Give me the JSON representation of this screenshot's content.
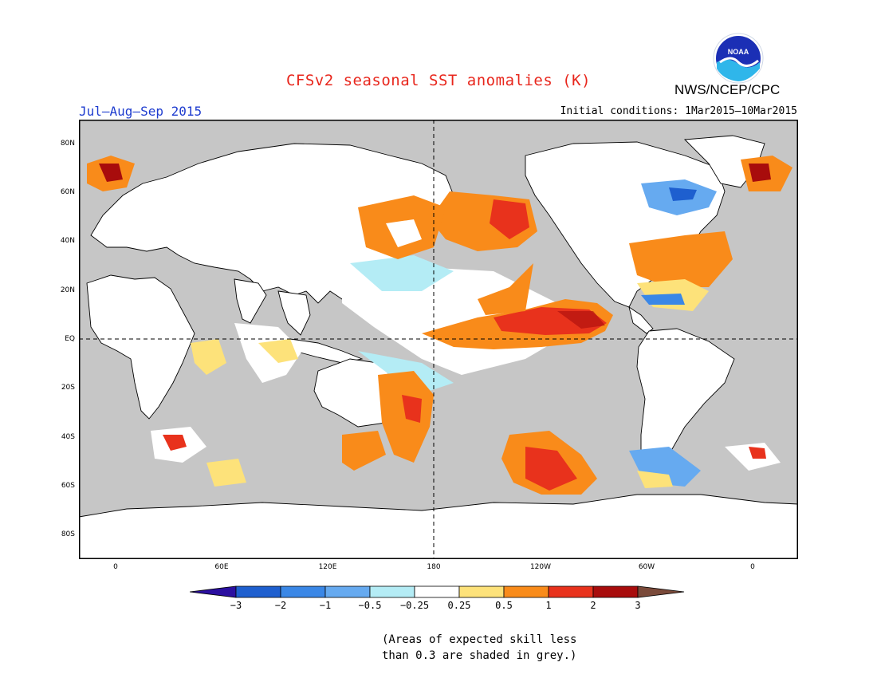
{
  "title": "CFSv2 seasonal SST anomalies (K)",
  "agency": "NWS/NCEP/CPC",
  "logo_text": "NOAA",
  "season": "Jul–Aug–Sep 2015",
  "initial_conditions": "Initial conditions: 1Mar2015–10Mar2015",
  "lat_labels": [
    "80N",
    "60N",
    "40N",
    "20N",
    "EQ",
    "20S",
    "40S",
    "60S",
    "80S"
  ],
  "lon_labels": [
    "0",
    "60E",
    "120E",
    "180",
    "120W",
    "60W",
    "0"
  ],
  "colorbar": {
    "labels": [
      "−3",
      "−2",
      "−1",
      "−0.5",
      "−0.25",
      "0.25",
      "0.5",
      "1",
      "2",
      "3"
    ],
    "colors": [
      "#2b0fa0",
      "#1e5fcf",
      "#3a87e6",
      "#66aaf0",
      "#b4ecf5",
      "#ffffff",
      "#fde27a",
      "#f98b1a",
      "#e8321c",
      "#a80c0c",
      "#7a4a3a"
    ]
  },
  "note_line1": "(Areas of expected skill less",
  "note_line2": "than 0.3 are shaded in grey.)",
  "colors": {
    "title": "#e8261c",
    "season": "#1e3ccf",
    "land": "#ffffff",
    "low_skill": "#c6c6c6"
  }
}
